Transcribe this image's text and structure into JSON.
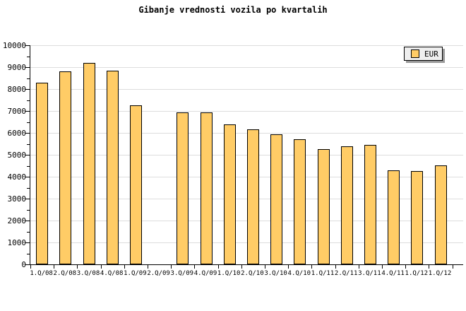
{
  "chart_data": {
    "type": "bar",
    "title": "Gibanje vrednosti vozila po kvartalih",
    "xlabel": "",
    "ylabel": "",
    "categories": [
      "1.Q/08",
      "2.Q/08",
      "3.Q/08",
      "4.Q/08",
      "1.Q/09",
      "2.Q/09",
      "3.Q/09",
      "4.Q/09",
      "1.Q/10",
      "2.Q/10",
      "3.Q/10",
      "4.Q/10",
      "1.Q/11",
      "2.Q/11",
      "3.Q/11",
      "4.Q/11",
      "1.Q/12",
      "1.Q/12"
    ],
    "series": [
      {
        "name": "EUR",
        "values": [
          8300,
          8800,
          9200,
          8850,
          7250,
          null,
          6950,
          6950,
          6400,
          6150,
          5950,
          5700,
          5250,
          5400,
          5450,
          4300,
          4250,
          4500
        ]
      }
    ],
    "ylim": [
      0,
      10000
    ],
    "y_tick_step": 1000,
    "y_minor_tick_step": 500,
    "y_tick_labels": [
      "0",
      "1000",
      "2000",
      "3000",
      "4000",
      "5000",
      "6000",
      "7000",
      "8000",
      "9000",
      "10000"
    ],
    "grid": "horizontal-major",
    "legend": [
      {
        "label": "EUR",
        "color": "#FFCC66"
      }
    ],
    "legend_position": "top-right",
    "colors": {
      "bar_fill": "#FFCC66",
      "bar_border": "#000000",
      "axis": "#000000",
      "gridline": "#DDDDDD",
      "background": "#FFFFFF",
      "legend_background": "#EEEEEE",
      "legend_border": "#000000",
      "legend_shadow": "#999999",
      "text": "#000000"
    }
  }
}
